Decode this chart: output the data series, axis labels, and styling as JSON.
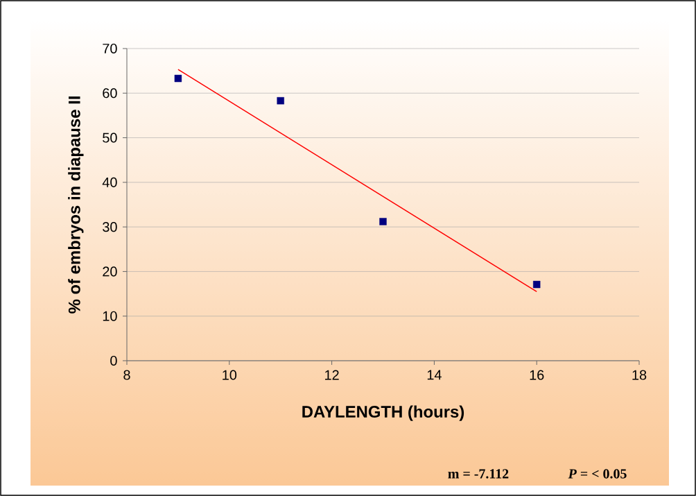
{
  "chart_data": {
    "type": "scatter",
    "xlabel": "DAYLENGTH (hours)",
    "ylabel": "% of embryos in diapause II",
    "xlim": [
      8,
      18
    ],
    "xticks": [
      8,
      10,
      12,
      14,
      16,
      18
    ],
    "ylim": [
      0,
      70
    ],
    "yticks": [
      0,
      10,
      20,
      30,
      40,
      50,
      60,
      70
    ],
    "grid": "y",
    "series": [
      {
        "x": [
          9,
          11,
          13,
          16
        ],
        "values": [
          63.3,
          58.3,
          31.2,
          17.1
        ],
        "color": "#000080",
        "marker": "square"
      },
      {
        "type": "line",
        "x": [
          9,
          16
        ],
        "values": [
          65.3,
          15.5
        ],
        "color": "#ff0000",
        "marker": "none",
        "line_style": "solid"
      }
    ],
    "annotations": [
      "m = -7.112",
      "*P* = < 0.05"
    ]
  }
}
